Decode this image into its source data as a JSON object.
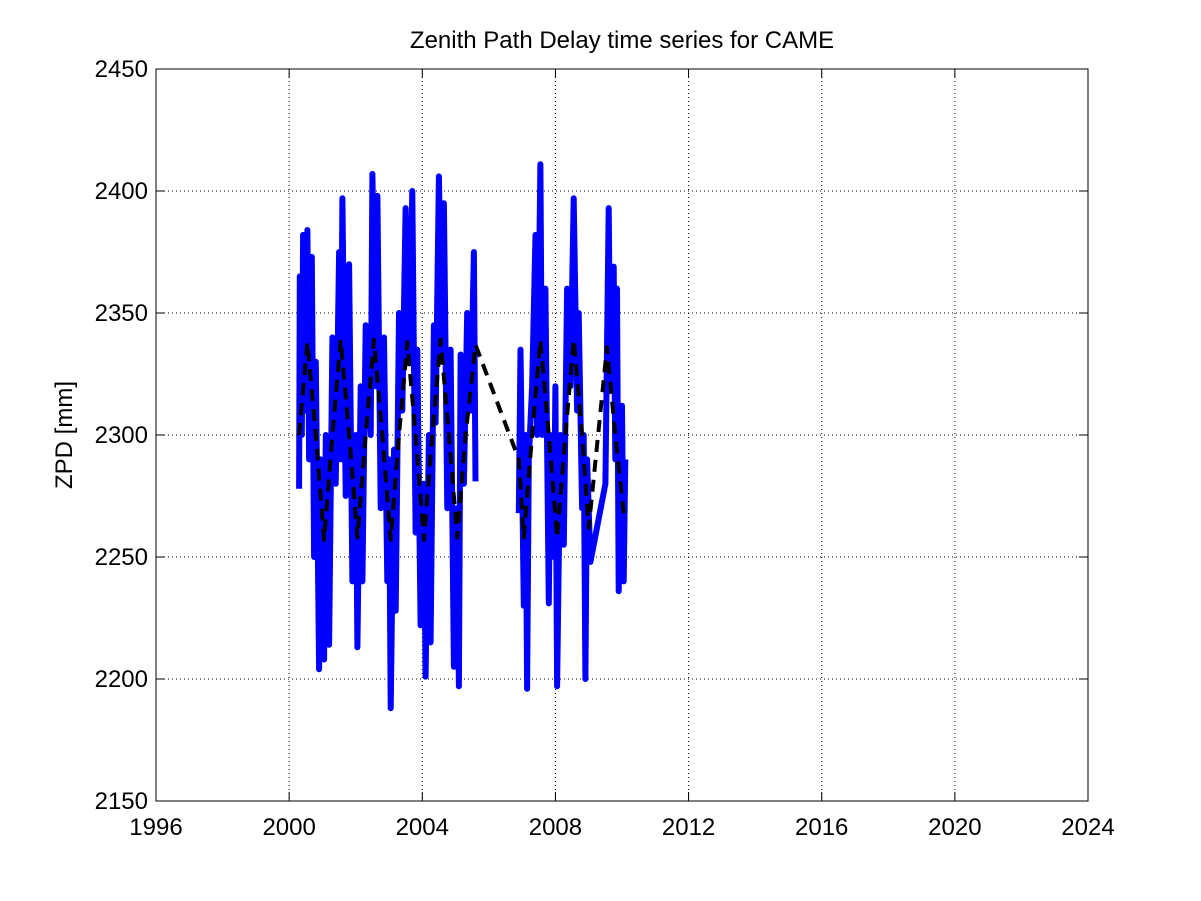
{
  "chart_data": {
    "type": "line",
    "title": "Zenith Path Delay time series for CAME",
    "ylabel": "ZPD [mm]",
    "xlim": [
      1996,
      2024
    ],
    "xticks": [
      1996,
      2000,
      2004,
      2008,
      2012,
      2016,
      2020,
      2024
    ],
    "ylim": [
      2150,
      2450
    ],
    "yticks": [
      2150,
      2200,
      2250,
      2300,
      2350,
      2400,
      2450
    ],
    "grid": true,
    "series": [
      {
        "color": "#0000ff",
        "style": "solid",
        "x": [
          2000.3,
          2000.32,
          2000.38,
          2000.42,
          2000.48,
          2000.55,
          2000.6,
          2000.68,
          2000.75,
          2000.8,
          2000.9,
          2000.95,
          2001.05,
          2001.1,
          2001.2,
          2001.3,
          2001.4,
          2001.5,
          2001.55,
          2001.6,
          2001.7,
          2001.8,
          2001.9,
          2002.0,
          2002.05,
          2002.15,
          2002.2,
          2002.3,
          2002.45,
          2002.5,
          2002.6,
          2002.65,
          2002.75,
          2002.85,
          2002.95,
          2003.0,
          2003.05,
          2003.15,
          2003.2,
          2003.3,
          2003.4,
          2003.5,
          2003.6,
          2003.7,
          2003.8,
          2003.85,
          2003.95,
          2004.05,
          2004.1,
          2004.2,
          2004.25,
          2004.35,
          2004.4,
          2004.5,
          2004.6,
          2004.65,
          2004.75,
          2004.85,
          2004.95,
          2005.05,
          2005.1,
          2005.15,
          2005.25,
          2005.35,
          2005.45,
          2005.55,
          2005.6,
          null,
          2006.9,
          2006.95,
          2007.05,
          2007.1,
          2007.15,
          2007.2,
          2007.3,
          2007.4,
          2007.45,
          2007.55,
          2007.6,
          2007.7,
          2007.8,
          2007.85,
          2007.95,
          2008.0,
          2008.05,
          2008.15,
          2008.25,
          2008.35,
          2008.45,
          2008.55,
          2008.65,
          2008.7,
          2008.8,
          2008.85,
          2008.9,
          2008.95,
          2009.05,
          2009.5,
          2009.6,
          2009.65,
          2009.75,
          2009.8,
          2009.85,
          2009.9,
          2010.0,
          2010.05,
          2010.1
        ],
        "values": [
          2278,
          2365,
          2300,
          2382,
          2310,
          2384,
          2290,
          2373,
          2250,
          2330,
          2204,
          2290,
          2208,
          2300,
          2214,
          2340,
          2280,
          2375,
          2290,
          2397,
          2275,
          2370,
          2240,
          2300,
          2213,
          2320,
          2240,
          2345,
          2300,
          2407,
          2320,
          2398,
          2270,
          2340,
          2240,
          2290,
          2188,
          2294,
          2228,
          2350,
          2310,
          2393,
          2330,
          2400,
          2260,
          2335,
          2222,
          2280,
          2201,
          2300,
          2215,
          2345,
          2305,
          2406,
          2330,
          2395,
          2270,
          2335,
          2205,
          2270,
          2197,
          2333,
          2280,
          2350,
          2310,
          2375,
          2281,
          null,
          2268,
          2335,
          2230,
          2300,
          2196,
          2290,
          2320,
          2382,
          2300,
          2411,
          2300,
          2360,
          2231,
          2300,
          2250,
          2320,
          2197,
          2300,
          2255,
          2360,
          2320,
          2397,
          2310,
          2350,
          2270,
          2300,
          2200,
          2290,
          2248,
          2280,
          2393,
          2320,
          2369,
          2290,
          2360,
          2236,
          2312,
          2240,
          2290
        ]
      },
      {
        "color": "#000000",
        "style": "dashed",
        "x": [
          2000.3,
          2000.55,
          2000.8,
          2001.05,
          2001.3,
          2001.55,
          2001.8,
          2002.05,
          2002.3,
          2002.55,
          2002.8,
          2003.05,
          2003.3,
          2003.55,
          2003.8,
          2004.05,
          2004.3,
          2004.55,
          2004.8,
          2005.05,
          2005.3,
          2005.6,
          2006.9,
          2007.05,
          2007.3,
          2007.55,
          2007.8,
          2008.05,
          2008.3,
          2008.55,
          2008.8,
          2009.0,
          2009.55,
          2009.8,
          2010.05
        ],
        "values": [
          2300,
          2338,
          2300,
          2257,
          2300,
          2339,
          2300,
          2258,
          2300,
          2339,
          2300,
          2257,
          2300,
          2338,
          2300,
          2257,
          2300,
          2339,
          2300,
          2258,
          2300,
          2337,
          2290,
          2258,
          2300,
          2339,
          2300,
          2258,
          2300,
          2339,
          2300,
          2262,
          2336,
          2300,
          2268
        ]
      }
    ]
  }
}
